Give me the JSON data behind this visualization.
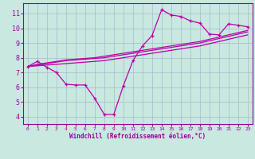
{
  "background_color": "#c8e8e0",
  "grid_color": "#aab8cc",
  "line_color": "#bb00aa",
  "marker_color": "#bb00aa",
  "xlabel": "Windchill (Refroidissement éolien,°C)",
  "xlabel_color": "#990099",
  "tick_color": "#990099",
  "xlim": [
    -0.5,
    23.5
  ],
  "ylim": [
    3.5,
    11.7
  ],
  "xticks": [
    0,
    1,
    2,
    3,
    4,
    5,
    6,
    7,
    8,
    9,
    10,
    11,
    12,
    13,
    14,
    15,
    16,
    17,
    18,
    19,
    20,
    21,
    22,
    23
  ],
  "yticks": [
    4,
    5,
    6,
    7,
    8,
    9,
    10,
    11
  ],
  "line1_x": [
    0,
    1,
    2,
    3,
    4,
    5,
    6,
    7,
    8,
    9,
    10,
    11,
    12,
    13,
    14,
    15,
    16,
    17,
    18,
    19,
    20,
    21,
    22,
    23
  ],
  "line1_y": [
    7.4,
    7.75,
    7.35,
    7.0,
    6.2,
    6.15,
    6.15,
    5.25,
    4.15,
    4.15,
    6.1,
    7.8,
    8.8,
    9.5,
    11.25,
    10.9,
    10.8,
    10.5,
    10.35,
    9.6,
    9.55,
    10.3,
    10.2,
    10.1
  ],
  "line2_x": [
    0,
    1,
    2,
    3,
    4,
    5,
    6,
    7,
    8,
    9,
    10,
    11,
    12,
    13,
    14,
    15,
    16,
    17,
    18,
    19,
    20,
    21,
    22,
    23
  ],
  "line2_y": [
    7.4,
    7.55,
    7.65,
    7.75,
    7.85,
    7.9,
    7.95,
    8.0,
    8.1,
    8.2,
    8.3,
    8.4,
    8.5,
    8.6,
    8.7,
    8.8,
    8.9,
    9.0,
    9.1,
    9.25,
    9.4,
    9.55,
    9.7,
    9.85
  ],
  "line3_x": [
    0,
    1,
    2,
    3,
    4,
    5,
    6,
    7,
    8,
    9,
    10,
    11,
    12,
    13,
    14,
    15,
    16,
    17,
    18,
    19,
    20,
    21,
    22,
    23
  ],
  "line3_y": [
    7.4,
    7.5,
    7.6,
    7.7,
    7.8,
    7.85,
    7.9,
    7.95,
    8.0,
    8.1,
    8.2,
    8.3,
    8.4,
    8.5,
    8.6,
    8.7,
    8.8,
    8.9,
    9.0,
    9.15,
    9.3,
    9.45,
    9.6,
    9.75
  ],
  "line4_x": [
    0,
    1,
    2,
    3,
    4,
    5,
    6,
    7,
    8,
    9,
    10,
    11,
    12,
    13,
    14,
    15,
    16,
    17,
    18,
    19,
    20,
    21,
    22,
    23
  ],
  "line4_y": [
    7.4,
    7.45,
    7.5,
    7.55,
    7.6,
    7.65,
    7.7,
    7.75,
    7.8,
    7.9,
    8.0,
    8.1,
    8.2,
    8.3,
    8.4,
    8.5,
    8.6,
    8.7,
    8.8,
    8.95,
    9.1,
    9.25,
    9.4,
    9.55
  ]
}
